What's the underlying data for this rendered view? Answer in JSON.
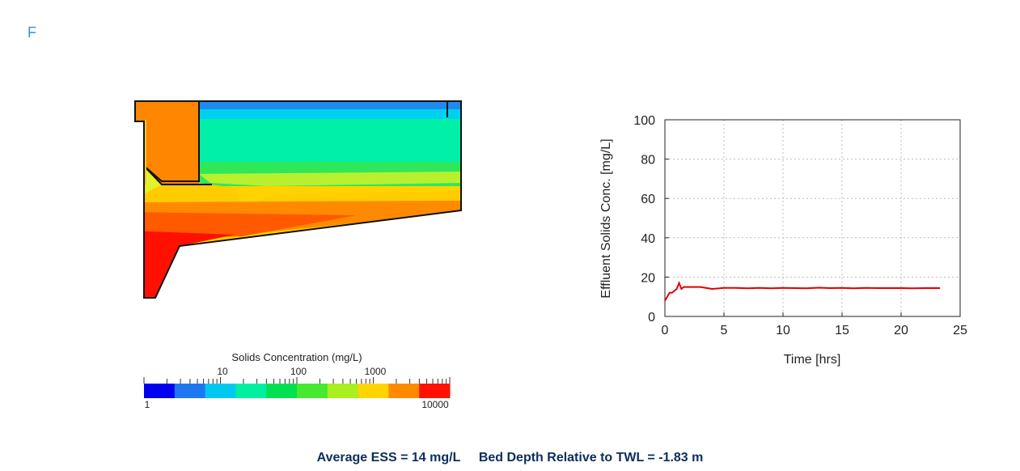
{
  "panel_label": "F",
  "colorbar": {
    "title": "Solids Concentration (mg/L)",
    "tick_labels": [
      "10",
      "100",
      "1000"
    ],
    "min_label": "1",
    "max_label": "10000",
    "colors": [
      "#0000ee",
      "#1f77f0",
      "#00c8f0",
      "#00f0a0",
      "#00e050",
      "#46e830",
      "#a8f020",
      "#ffd400",
      "#ff8a00",
      "#ff1000"
    ]
  },
  "chart_data": {
    "type": "line",
    "xlabel": "Time [hrs]",
    "ylabel": "Effluent Solids Conc. [mg/L]",
    "xlim": [
      0,
      25
    ],
    "ylim": [
      0,
      100
    ],
    "xticks": [
      0,
      5,
      10,
      15,
      20,
      25
    ],
    "yticks": [
      0,
      20,
      40,
      60,
      80,
      100
    ],
    "grid": true,
    "series": [
      {
        "color": "#e00000",
        "x": [
          0,
          0.2,
          0.4,
          0.6,
          0.8,
          1.0,
          1.2,
          1.4,
          1.6,
          2,
          3,
          4,
          5,
          6,
          7,
          8,
          9,
          10,
          11,
          12,
          13,
          14,
          15,
          16,
          17,
          18,
          19,
          20,
          21,
          22,
          23.3
        ],
        "y": [
          8,
          10,
          12,
          12,
          13,
          14,
          17,
          14,
          15,
          15,
          15,
          14,
          14.5,
          14.5,
          14.3,
          14.5,
          14.3,
          14.5,
          14.4,
          14.3,
          14.6,
          14.4,
          14.5,
          14.3,
          14.5,
          14.4,
          14.4,
          14.4,
          14.3,
          14.4,
          14.4
        ]
      }
    ]
  },
  "footer": {
    "ess_text": "Average ESS = 14 mg/L",
    "bed_text": "Bed Depth Relative to TWL = -1.83 m"
  }
}
